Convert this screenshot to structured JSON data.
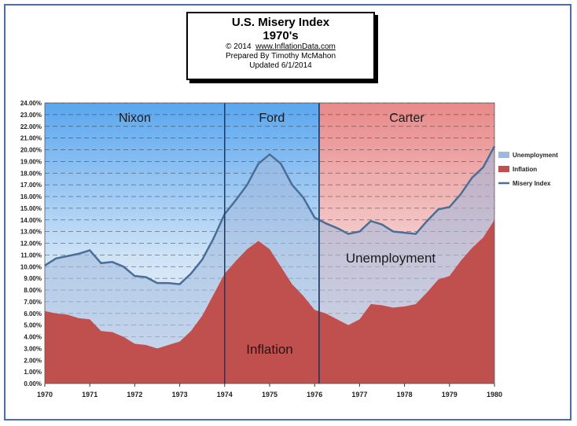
{
  "title": {
    "line1": "U.S. Misery Index",
    "line2": "1970's",
    "copyright_prefix": "© 2014",
    "url": "www.InflationData.com",
    "prepared": "Prepared By Timothy McMahon",
    "updated": "Updated 6/1/2014"
  },
  "colors": {
    "inflation": "#c0504d",
    "unemployment": "#9fb8dc",
    "misery_line": "#4b6e97",
    "nixon_band": "#5aa6ee",
    "ford_band": "#5aa6ee",
    "carter_band": "#e88a8a",
    "frame": "#4a6cc0"
  },
  "chart_data": {
    "type": "area",
    "xlim": [
      1970,
      1980
    ],
    "ylim": [
      0,
      24
    ],
    "y_ticks": [
      "0.00%",
      "1.00%",
      "2.00%",
      "3.00%",
      "4.00%",
      "5.00%",
      "6.00%",
      "7.00%",
      "8.00%",
      "9.00%",
      "10.00%",
      "11.00%",
      "12.00%",
      "13.00%",
      "14.00%",
      "15.00%",
      "16.00%",
      "17.00%",
      "18.00%",
      "19.00%",
      "20.00%",
      "21.00%",
      "22.00%",
      "23.00%",
      "24.00%"
    ],
    "x_ticks": [
      "1970",
      "1971",
      "1972",
      "1973",
      "1974",
      "1975",
      "1976",
      "1977",
      "1978",
      "1979",
      "1980"
    ],
    "grid": "horizontal dashed",
    "legend_position": "right",
    "legend": [
      "Unemployment",
      "Inflation",
      "Misery Index"
    ],
    "eras": [
      {
        "name": "Nixon",
        "start": 1970,
        "end": 1974
      },
      {
        "name": "Ford",
        "start": 1974,
        "end": 1976.1
      },
      {
        "name": "Carter",
        "start": 1976.1,
        "end": 1980
      }
    ],
    "annotations": [
      "Unemployment",
      "Inflation"
    ],
    "series": [
      {
        "name": "Inflation",
        "x": [
          1970.0,
          1970.25,
          1970.5,
          1970.75,
          1971.0,
          1971.25,
          1971.5,
          1971.75,
          1972.0,
          1972.25,
          1972.5,
          1972.75,
          1973.0,
          1973.25,
          1973.5,
          1973.75,
          1974.0,
          1974.25,
          1974.5,
          1974.75,
          1975.0,
          1975.25,
          1975.5,
          1975.75,
          1976.0,
          1976.25,
          1976.5,
          1976.75,
          1977.0,
          1977.25,
          1977.5,
          1977.75,
          1978.0,
          1978.25,
          1978.5,
          1978.75,
          1979.0,
          1979.25,
          1979.5,
          1979.75,
          1980.0
        ],
        "values": [
          6.2,
          6.0,
          5.9,
          5.6,
          5.5,
          4.5,
          4.4,
          4.0,
          3.4,
          3.3,
          3.0,
          3.3,
          3.6,
          4.5,
          5.8,
          7.6,
          9.4,
          10.5,
          11.5,
          12.2,
          11.5,
          10.0,
          8.5,
          7.5,
          6.3,
          6.0,
          5.5,
          5.0,
          5.5,
          6.8,
          6.7,
          6.5,
          6.6,
          6.8,
          7.8,
          8.9,
          9.2,
          10.5,
          11.6,
          12.5,
          14.0
        ]
      },
      {
        "name": "Unemployment",
        "x": [
          1970.0,
          1970.25,
          1970.5,
          1970.75,
          1971.0,
          1971.25,
          1971.5,
          1971.75,
          1972.0,
          1972.25,
          1972.5,
          1972.75,
          1973.0,
          1973.25,
          1973.5,
          1973.75,
          1974.0,
          1974.25,
          1974.5,
          1974.75,
          1975.0,
          1975.25,
          1975.5,
          1975.75,
          1976.0,
          1976.25,
          1976.5,
          1976.75,
          1977.0,
          1977.25,
          1977.5,
          1977.75,
          1978.0,
          1978.25,
          1978.5,
          1978.75,
          1979.0,
          1979.25,
          1979.5,
          1979.75,
          1980.0
        ],
        "values": [
          3.9,
          4.7,
          5.0,
          5.5,
          5.9,
          5.8,
          6.0,
          6.0,
          5.8,
          5.8,
          5.6,
          5.3,
          4.9,
          4.9,
          4.8,
          4.8,
          5.1,
          5.2,
          5.5,
          6.6,
          8.1,
          8.8,
          8.5,
          8.4,
          7.9,
          7.7,
          7.8,
          7.8,
          7.5,
          7.1,
          6.9,
          6.5,
          6.3,
          6.0,
          6.1,
          6.0,
          5.9,
          5.7,
          6.0,
          6.0,
          6.3
        ]
      },
      {
        "name": "Misery Index",
        "x": [
          1970.0,
          1970.25,
          1970.5,
          1970.75,
          1971.0,
          1971.25,
          1971.5,
          1971.75,
          1972.0,
          1972.25,
          1972.5,
          1972.75,
          1973.0,
          1973.25,
          1973.5,
          1973.75,
          1974.0,
          1974.25,
          1974.5,
          1974.75,
          1975.0,
          1975.25,
          1975.5,
          1975.75,
          1976.0,
          1976.25,
          1976.5,
          1976.75,
          1977.0,
          1977.25,
          1977.5,
          1977.75,
          1978.0,
          1978.25,
          1978.5,
          1978.75,
          1979.0,
          1979.25,
          1979.5,
          1979.75,
          1980.0
        ],
        "values": [
          10.1,
          10.7,
          10.9,
          11.1,
          11.4,
          10.3,
          10.4,
          10.0,
          9.2,
          9.1,
          8.6,
          8.6,
          8.5,
          9.4,
          10.6,
          12.4,
          14.5,
          15.7,
          17.0,
          18.8,
          19.6,
          18.8,
          17.0,
          15.9,
          14.2,
          13.7,
          13.3,
          12.8,
          13.0,
          13.9,
          13.6,
          13.0,
          12.9,
          12.8,
          13.9,
          14.9,
          15.1,
          16.2,
          17.6,
          18.5,
          20.3
        ]
      }
    ]
  }
}
